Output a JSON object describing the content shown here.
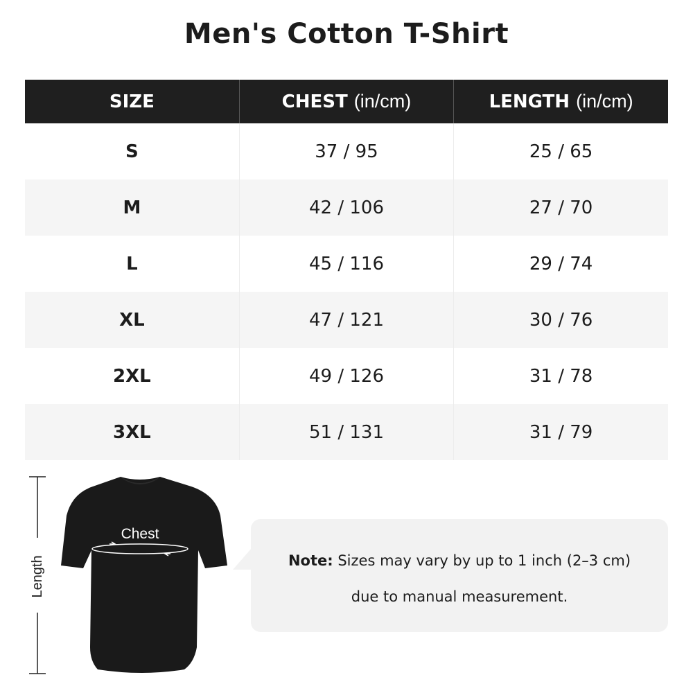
{
  "title": "Men's Cotton T-Shirt",
  "table": {
    "headers": [
      {
        "label": "SIZE",
        "unit": ""
      },
      {
        "label": "CHEST",
        "unit": "(in/cm)"
      },
      {
        "label": "LENGTH",
        "unit": "(in/cm)"
      }
    ],
    "rows": [
      [
        "S",
        "37 / 95",
        "25 / 65"
      ],
      [
        "M",
        "42 / 106",
        "27 / 70"
      ],
      [
        "L",
        "45 / 116",
        "29 / 74"
      ],
      [
        "XL",
        "47 / 121",
        "30 / 76"
      ],
      [
        "2XL",
        "49 / 126",
        "31 / 78"
      ],
      [
        "3XL",
        "51 / 131",
        "31 / 79"
      ]
    ]
  },
  "diagram": {
    "chest_label": "Chest",
    "length_label": "Length",
    "shirt_color": "#1a1a1a"
  },
  "note": {
    "label": "Note:",
    "line1": "Sizes may vary by up to 1 inch (2–3 cm)",
    "line2": "due to manual measurement."
  },
  "colors": {
    "header_bg": "#1f1f1f",
    "alt_row": "#f5f5f5",
    "note_bg": "#f2f2f2"
  }
}
